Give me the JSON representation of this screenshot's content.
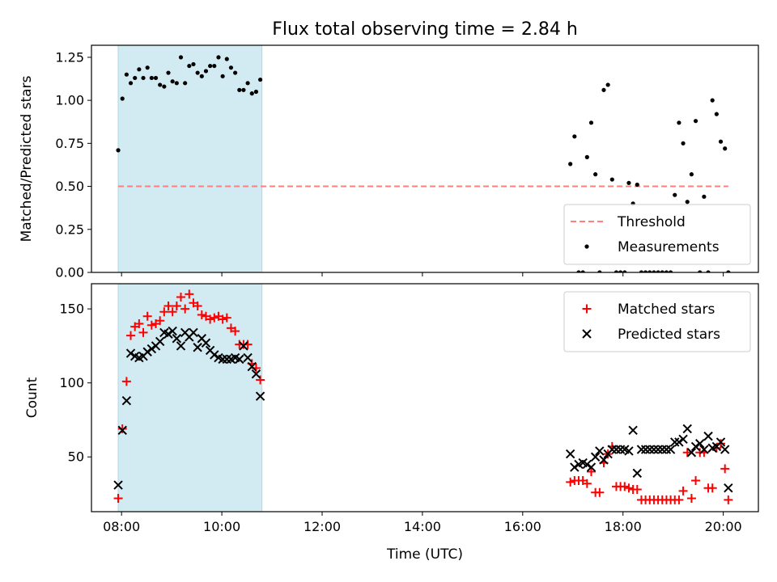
{
  "title": "Flux total observing time = 2.84 h",
  "xlabel": "Time (UTC)",
  "colors": {
    "threshold": "#ff7f7f",
    "measurements": "#000000",
    "matched": "#ff0000",
    "predicted": "#000000",
    "shade": "#add8e6"
  },
  "chart_data": [
    {
      "type": "scatter",
      "ylabel": "Matched/Predicted stars",
      "xlim": [
        "07:24",
        "20:42"
      ],
      "ylim": [
        0,
        1.32
      ],
      "yticks": [
        "0.00",
        "0.25",
        "0.50",
        "0.75",
        "1.00",
        "1.25"
      ],
      "shaded_span": [
        "07:56",
        "10:48"
      ],
      "threshold": {
        "name": "Threshold",
        "value": 0.5,
        "x": [
          "07:56",
          "20:06"
        ],
        "style": "dashed"
      },
      "series": [
        {
          "name": "Measurements",
          "marker": "dot",
          "x": [
            "07:56",
            "08:01",
            "08:06",
            "08:11",
            "08:16",
            "08:21",
            "08:26",
            "08:31",
            "08:36",
            "08:41",
            "08:46",
            "08:51",
            "08:56",
            "09:01",
            "09:06",
            "09:11",
            "09:16",
            "09:21",
            "09:26",
            "09:31",
            "09:36",
            "09:41",
            "09:46",
            "09:51",
            "09:56",
            "10:01",
            "10:06",
            "10:11",
            "10:16",
            "10:21",
            "10:26",
            "10:31",
            "10:36",
            "10:41",
            "10:46",
            "16:57",
            "17:02",
            "17:07",
            "17:12",
            "17:17",
            "17:22",
            "17:27",
            "17:32",
            "17:37",
            "17:42",
            "17:47",
            "17:52",
            "17:57",
            "18:02",
            "18:07",
            "18:12",
            "18:17",
            "18:22",
            "18:27",
            "18:32",
            "18:37",
            "18:42",
            "18:47",
            "18:52",
            "18:57",
            "19:02",
            "19:07",
            "19:12",
            "19:17",
            "19:22",
            "19:27",
            "19:32",
            "19:37",
            "19:42",
            "19:47",
            "19:52",
            "19:57",
            "20:02",
            "20:06"
          ],
          "y": [
            0.71,
            1.01,
            1.15,
            1.1,
            1.13,
            1.18,
            1.13,
            1.19,
            1.13,
            1.13,
            1.09,
            1.08,
            1.16,
            1.11,
            1.1,
            1.25,
            1.1,
            1.2,
            1.21,
            1.16,
            1.14,
            1.17,
            1.2,
            1.2,
            1.25,
            1.14,
            1.24,
            1.19,
            1.16,
            1.06,
            1.06,
            1.1,
            1.04,
            1.05,
            1.12,
            0.63,
            0.79,
            0.0,
            0.0,
            0.67,
            0.87,
            0.57,
            0.0,
            1.06,
            1.09,
            0.54,
            0.0,
            0.0,
            0.0,
            0.52,
            0.4,
            0.51,
            0.0,
            0.0,
            0.0,
            0.0,
            0.0,
            0.0,
            0.0,
            0.0,
            0.45,
            0.87,
            0.75,
            0.41,
            0.57,
            0.88,
            0.0,
            0.44,
            0.0,
            1.0,
            0.92,
            0.76,
            0.72,
            0.0
          ]
        }
      ],
      "legend": "lower-right"
    },
    {
      "type": "scatter",
      "ylabel": "Count",
      "xlim": [
        "07:24",
        "20:42"
      ],
      "ylim": [
        13,
        167
      ],
      "yticks": [
        "50",
        "100",
        "150"
      ],
      "xticks": [
        "08:00",
        "10:00",
        "12:00",
        "14:00",
        "16:00",
        "18:00",
        "20:00"
      ],
      "shaded_span": [
        "07:56",
        "10:48"
      ],
      "series": [
        {
          "name": "Matched stars",
          "marker": "plus",
          "x": [
            "07:56",
            "08:01",
            "08:06",
            "08:11",
            "08:16",
            "08:21",
            "08:26",
            "08:31",
            "08:36",
            "08:41",
            "08:46",
            "08:51",
            "08:56",
            "09:01",
            "09:06",
            "09:11",
            "09:16",
            "09:21",
            "09:26",
            "09:31",
            "09:36",
            "09:41",
            "09:46",
            "09:51",
            "09:56",
            "10:01",
            "10:06",
            "10:11",
            "10:16",
            "10:21",
            "10:26",
            "10:31",
            "10:36",
            "10:41",
            "10:46",
            "16:57",
            "17:02",
            "17:07",
            "17:12",
            "17:17",
            "17:22",
            "17:27",
            "17:32",
            "17:37",
            "17:42",
            "17:47",
            "17:52",
            "17:57",
            "18:02",
            "18:07",
            "18:12",
            "18:17",
            "18:22",
            "18:27",
            "18:32",
            "18:37",
            "18:42",
            "18:47",
            "18:52",
            "18:57",
            "19:02",
            "19:07",
            "19:12",
            "19:17",
            "19:22",
            "19:27",
            "19:32",
            "19:37",
            "19:42",
            "19:47",
            "19:52",
            "19:57",
            "20:02",
            "20:06"
          ],
          "y": [
            22,
            69,
            101,
            132,
            138,
            140,
            134,
            145,
            139,
            140,
            142,
            148,
            152,
            148,
            152,
            158,
            150,
            160,
            154,
            152,
            146,
            145,
            143,
            144,
            145,
            143,
            144,
            137,
            135,
            126,
            126,
            126,
            113,
            110,
            102,
            33,
            34,
            34,
            34,
            32,
            40,
            26,
            26,
            46,
            52,
            57,
            30,
            30,
            30,
            29,
            28,
            28,
            21,
            21,
            21,
            21,
            21,
            21,
            21,
            21,
            21,
            21,
            27,
            53,
            22,
            34,
            53,
            53,
            29,
            29,
            56,
            59,
            42,
            21
          ]
        },
        {
          "name": "Predicted stars",
          "marker": "x",
          "x": [
            "07:56",
            "08:01",
            "08:06",
            "08:11",
            "08:16",
            "08:21",
            "08:26",
            "08:31",
            "08:36",
            "08:41",
            "08:46",
            "08:51",
            "08:56",
            "09:01",
            "09:06",
            "09:11",
            "09:16",
            "09:21",
            "09:26",
            "09:31",
            "09:36",
            "09:41",
            "09:46",
            "09:51",
            "09:56",
            "10:01",
            "10:06",
            "10:11",
            "10:16",
            "10:21",
            "10:26",
            "10:31",
            "10:36",
            "10:41",
            "10:46",
            "16:57",
            "17:02",
            "17:07",
            "17:12",
            "17:17",
            "17:22",
            "17:27",
            "17:32",
            "17:37",
            "17:42",
            "17:47",
            "17:52",
            "17:57",
            "18:02",
            "18:07",
            "18:12",
            "18:17",
            "18:22",
            "18:27",
            "18:32",
            "18:37",
            "18:42",
            "18:47",
            "18:52",
            "18:57",
            "19:02",
            "19:07",
            "19:12",
            "19:17",
            "19:22",
            "19:27",
            "19:32",
            "19:37",
            "19:42",
            "19:47",
            "19:52",
            "19:57",
            "20:02",
            "20:06"
          ],
          "y": [
            31,
            68,
            88,
            120,
            118,
            117,
            118,
            121,
            123,
            125,
            128,
            134,
            133,
            135,
            130,
            125,
            134,
            131,
            134,
            124,
            130,
            127,
            122,
            119,
            117,
            116,
            116,
            116,
            117,
            116,
            125,
            117,
            111,
            106,
            91,
            52,
            43,
            45,
            46,
            45,
            43,
            50,
            54,
            48,
            52,
            55,
            55,
            55,
            55,
            54,
            68,
            39,
            55,
            55,
            55,
            55,
            55,
            55,
            55,
            55,
            60,
            60,
            62,
            69,
            53,
            57,
            59,
            55,
            64,
            56,
            57,
            60,
            55,
            29
          ]
        }
      ],
      "legend": "upper-right"
    }
  ]
}
